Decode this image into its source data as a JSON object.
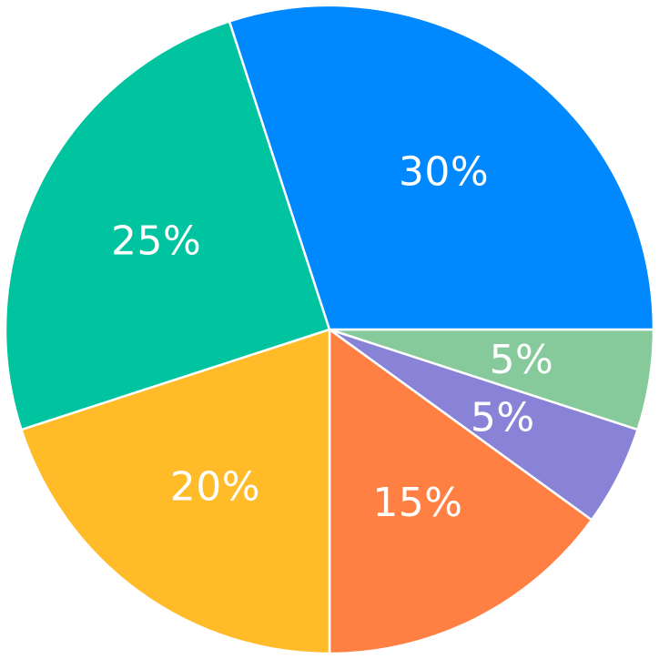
{
  "chart_data": {
    "type": "pie",
    "start_angle_deg": 0,
    "direction": "clockwise",
    "slices": [
      {
        "label": "5%",
        "value": 5,
        "color": "#86C99B"
      },
      {
        "label": "5%",
        "value": 5,
        "color": "#8983D8"
      },
      {
        "label": "15%",
        "value": 15,
        "color": "#FF8042"
      },
      {
        "label": "20%",
        "value": 20,
        "color": "#FFBB28"
      },
      {
        "label": "25%",
        "value": 25,
        "color": "#00C49F"
      },
      {
        "label": "30%",
        "value": 30,
        "color": "#0088FE"
      }
    ]
  }
}
